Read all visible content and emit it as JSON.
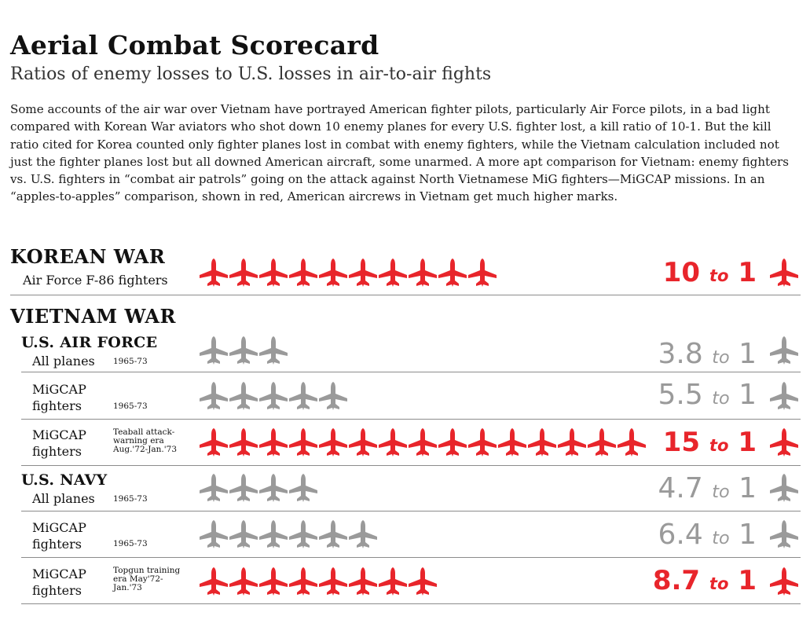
{
  "title": "Aerial Combat Scorecard",
  "subtitle": "Ratios of enemy losses to U.S. losses in air-to-air fights",
  "intro": "Some accounts of the air war over Vietnam have portrayed American fighter pilots, particularly Air Force pilots, in a bad light compared with Korean War aviators who shot down 10 enemy planes for every U.S. fighter lost, a kill ratio of 10-1. But the kill ratio cited for Korea counted only fighter planes lost in combat with enemy fighters, while the Vietnam calculation included not just the fighter planes lost but all downed American aircraft, some unarmed. A more apt comparison for Vietnam: enemy fighters vs. U.S. fighters in “combat air patrols” going on the attack against North Vietnamese MiG fighters—MiGCAP missions. In an “apples-to-apples” comparison, shown in red, American aircrews in Vietnam get much higher marks.",
  "headings": {
    "korean_war": "KOREAN WAR",
    "vietnam_war": "VIETNAM WAR",
    "air_force": "U.S. AIR FORCE",
    "navy": "U.S. NAVY"
  },
  "colors": {
    "red": "#e8252b",
    "gray": "#9a9a9a"
  },
  "ratio_word": "to",
  "chart_data": {
    "type": "bar",
    "title": "Aerial Combat Scorecard",
    "unit": "enemy losses per one U.S. loss (pictograph, one plane = 1)",
    "rows": [
      {
        "group": "KOREAN WAR",
        "label_line1": "Air Force F-86 fighters",
        "label_line2": "",
        "period": "",
        "value": 10,
        "numerator": "10",
        "denominator": "1",
        "highlight": true
      },
      {
        "group": "U.S. AIR FORCE",
        "label_line1": "All planes",
        "label_line2": "",
        "period": "1965-73",
        "value": 3.8,
        "numerator": "3.8",
        "denominator": "1",
        "highlight": false
      },
      {
        "group": "U.S. AIR FORCE",
        "label_line1": "MiGCAP",
        "label_line2": "fighters",
        "period": "1965-73",
        "value": 5.5,
        "numerator": "5.5",
        "denominator": "1",
        "highlight": false
      },
      {
        "group": "U.S. AIR FORCE",
        "label_line1": "MiGCAP",
        "label_line2": "fighters",
        "period": "Teaball attack-warning era Aug.'72-Jan.'73",
        "value": 15,
        "numerator": "15",
        "denominator": "1",
        "highlight": true
      },
      {
        "group": "U.S. NAVY",
        "label_line1": "All planes",
        "label_line2": "",
        "period": "1965-73",
        "value": 4.7,
        "numerator": "4.7",
        "denominator": "1",
        "highlight": false
      },
      {
        "group": "U.S. NAVY",
        "label_line1": "MiGCAP",
        "label_line2": "fighters",
        "period": "1965-73",
        "value": 6.4,
        "numerator": "6.4",
        "denominator": "1",
        "highlight": false
      },
      {
        "group": "U.S. NAVY",
        "label_line1": "MiGCAP",
        "label_line2": "fighters",
        "period": "Topgun training era May'72-Jan.'73",
        "value": 8.7,
        "numerator": "8.7",
        "denominator": "1",
        "highlight": true
      }
    ]
  }
}
